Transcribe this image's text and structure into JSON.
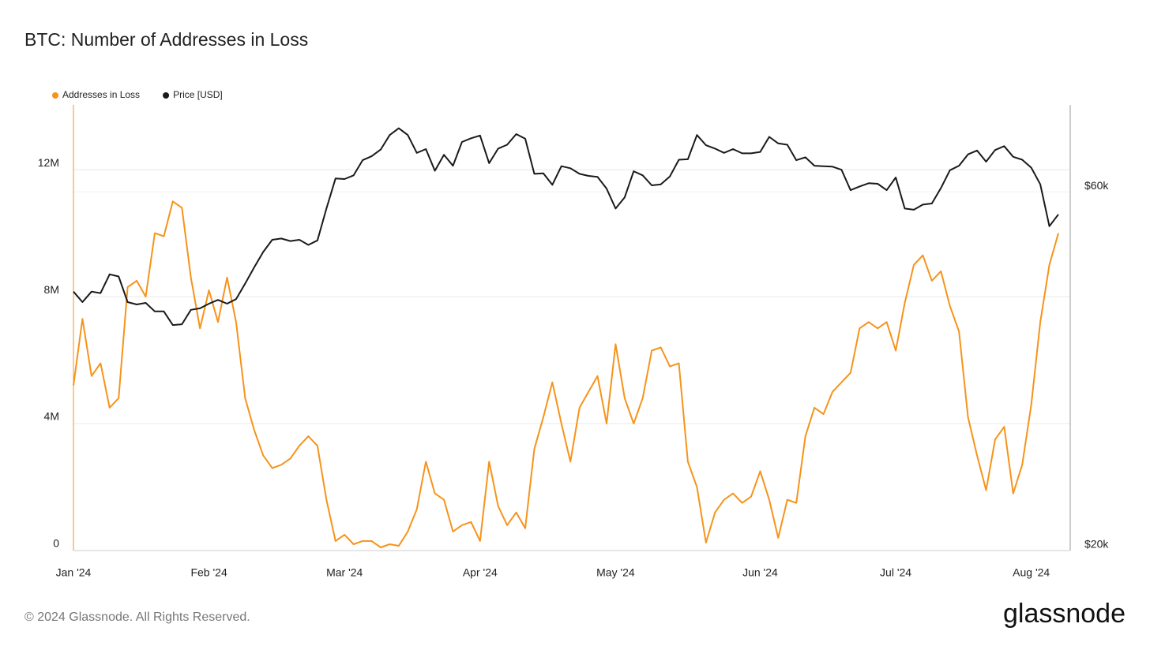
{
  "chart_data": {
    "type": "line",
    "title": "BTC: Number of Addresses in Loss",
    "footer": "© 2024 Glassnode. All Rights Reserved.",
    "brand": "glassnode",
    "grid": true,
    "y2log": true,
    "ylim": [
      0,
      14040000
    ],
    "yticks": [
      0,
      {
        "value": 4000000,
        "label": "4M"
      },
      {
        "value": 8000000,
        "label": "8M"
      },
      {
        "value": 12000000,
        "label": "12M"
      }
    ],
    "y2lim": [
      20000,
      78300
    ],
    "y2ticks": [
      {
        "value": 20000,
        "label": "$20k"
      },
      {
        "value": 60000,
        "label": "$60k"
      }
    ],
    "categories": [
      "Jan '24",
      null,
      null,
      null,
      null,
      null,
      null,
      null,
      null,
      null,
      null,
      null,
      null,
      null,
      null,
      "Feb '24",
      null,
      null,
      null,
      null,
      null,
      null,
      null,
      null,
      null,
      null,
      null,
      null,
      null,
      null,
      "Mar '24",
      null,
      null,
      null,
      null,
      null,
      null,
      null,
      null,
      null,
      null,
      null,
      null,
      null,
      null,
      "Apr '24",
      null,
      null,
      null,
      null,
      null,
      null,
      null,
      null,
      null,
      null,
      null,
      null,
      null,
      null,
      "May '24",
      null,
      null,
      null,
      null,
      null,
      null,
      null,
      null,
      null,
      null,
      null,
      null,
      null,
      null,
      null,
      "Jun '24",
      null,
      null,
      null,
      null,
      null,
      null,
      null,
      null,
      null,
      null,
      null,
      null,
      null,
      null,
      "Jul '24",
      null,
      null,
      null,
      null,
      null,
      null,
      null,
      null,
      null,
      null,
      null,
      null,
      null,
      null,
      "Aug '24",
      null,
      null,
      null
    ],
    "series": [
      {
        "name": "Addresses in Loss",
        "color": "#f7931a",
        "values": [
          5200000,
          7300000,
          5500000,
          5900000,
          4500000,
          4800000,
          8300000,
          8500000,
          8000000,
          10000000,
          9900000,
          11000000,
          10800000,
          8600000,
          7000000,
          8200000,
          7200000,
          8600000,
          7200000,
          4800000,
          3800000,
          3000000,
          2600000,
          2700000,
          2900000,
          3300000,
          3600000,
          3300000,
          1600000,
          300000,
          500000,
          200000,
          300000,
          300000,
          100000,
          200000,
          150000,
          600000,
          1300000,
          2800000,
          1800000,
          1600000,
          600000,
          800000,
          900000,
          300000,
          2800000,
          1400000,
          800000,
          1200000,
          700000,
          3200000,
          4200000,
          5300000,
          4000000,
          2800000,
          4500000,
          5000000,
          5500000,
          4000000,
          6500000,
          4800000,
          4000000,
          4800000,
          6300000,
          6400000,
          5800000,
          5900000,
          2800000,
          2000000,
          250000,
          1200000,
          1600000,
          1800000,
          1500000,
          1700000,
          2500000,
          1600000,
          400000,
          1600000,
          1500000,
          3600000,
          4500000,
          4300000,
          5000000,
          5300000,
          5600000,
          7000000,
          7200000,
          7000000,
          7200000,
          6300000,
          7800000,
          9000000,
          9300000,
          8500000,
          8800000,
          7700000,
          6900000,
          4200000,
          3000000,
          1900000,
          3500000,
          3900000,
          1800000,
          2700000,
          4600000,
          7200000,
          9000000,
          10000000
        ]
      },
      {
        "name": "Price [USD]",
        "color": "#1a1a1a",
        "axis": "y2",
        "values": [
          44200,
          42800,
          44200,
          44000,
          46600,
          46300,
          42800,
          42500,
          42700,
          41600,
          41600,
          39900,
          40000,
          41800,
          42000,
          42600,
          43100,
          42600,
          43200,
          45300,
          47600,
          49900,
          51800,
          52000,
          51600,
          51800,
          51000,
          51700,
          57000,
          62500,
          62400,
          63100,
          66100,
          66900,
          68300,
          71400,
          72900,
          71400,
          67600,
          68400,
          64000,
          67200,
          65000,
          69900,
          70700,
          71300,
          65500,
          68500,
          69300,
          71600,
          70600,
          63400,
          63500,
          61300,
          64900,
          64500,
          63400,
          63000,
          62800,
          60600,
          57000,
          59000,
          63900,
          63100,
          61200,
          61400,
          62900,
          66200,
          66300,
          71400,
          69200,
          68500,
          67600,
          68400,
          67500,
          67500,
          67800,
          71000,
          69600,
          69300,
          66100,
          66700,
          65000,
          64900,
          64800,
          64200,
          60300,
          61000,
          61600,
          61500,
          60300,
          62700,
          57000,
          56800,
          57700,
          57900,
          60700,
          64100,
          65000,
          67300,
          68100,
          65800,
          68200,
          69000,
          66800,
          66200,
          64600,
          61400,
          54000,
          56000
        ]
      }
    ]
  }
}
